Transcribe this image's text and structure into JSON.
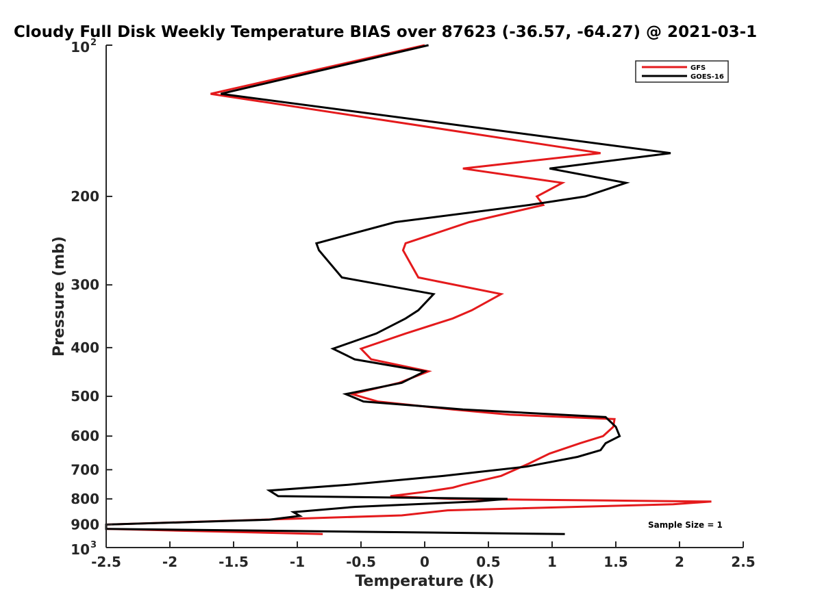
{
  "chart_data": {
    "type": "line",
    "title": "Cloudy Full Disk Weekly Temperature BIAS over 87623 (-36.57, -64.27) @ 2021-03-1",
    "xlabel": "Temperature (K)",
    "ylabel": "Pressure (mb)",
    "xlim": [
      -2.5,
      2.5
    ],
    "ylim": [
      100,
      1000
    ],
    "y_scale": "log",
    "y_reversed": true,
    "x_ticks": [
      -2.5,
      -2,
      -1.5,
      -1,
      -0.5,
      0,
      0.5,
      1,
      1.5,
      2,
      2.5
    ],
    "x_tick_labels": [
      "-2.5",
      "-2",
      "-1.5",
      "-1",
      "-0.5",
      "0",
      "0.5",
      "1",
      "1.5",
      "2",
      "2.5"
    ],
    "y_ticks": [
      200,
      300,
      400,
      500,
      600,
      700,
      800,
      900
    ],
    "y_tick_labels": [
      "200",
      "300",
      "400",
      "500",
      "600",
      "700",
      "800",
      "900"
    ],
    "y_end_ticks": [
      {
        "value": 100,
        "base": "10",
        "exponent": "2"
      },
      {
        "value": 1000,
        "base": "10",
        "exponent": "3"
      }
    ],
    "grid": false,
    "legend_position": "top-right",
    "annotation": "Sample Size = 1",
    "series": [
      {
        "name": "GFS",
        "color": "#e41a1c",
        "points": [
          [
            0.0,
            100
          ],
          [
            -1.68,
            125
          ],
          [
            1.38,
            164
          ],
          [
            0.3,
            176
          ],
          [
            1.08,
            188
          ],
          [
            0.88,
            200
          ],
          [
            0.93,
            208
          ],
          [
            0.35,
            225
          ],
          [
            -0.15,
            248
          ],
          [
            -0.17,
            256
          ],
          [
            -0.05,
            290
          ],
          [
            0.6,
            313
          ],
          [
            0.37,
            337
          ],
          [
            0.22,
            350
          ],
          [
            -0.15,
            375
          ],
          [
            -0.5,
            402
          ],
          [
            -0.42,
            422
          ],
          [
            0.03,
            446
          ],
          [
            -0.2,
            470
          ],
          [
            -0.57,
            495
          ],
          [
            -0.37,
            512
          ],
          [
            0.22,
            531
          ],
          [
            0.67,
            544
          ],
          [
            1.49,
            555
          ],
          [
            1.48,
            575
          ],
          [
            1.4,
            600
          ],
          [
            1.22,
            620
          ],
          [
            0.98,
            650
          ],
          [
            0.82,
            680
          ],
          [
            0.6,
            720
          ],
          [
            0.3,
            750
          ],
          [
            0.22,
            760
          ],
          [
            0.0,
            775
          ],
          [
            -0.27,
            790
          ],
          [
            0.2,
            800
          ],
          [
            2.25,
            810
          ],
          [
            1.95,
            820
          ],
          [
            0.18,
            843
          ],
          [
            -0.18,
            863
          ],
          [
            -2.5,
            900
          ],
          [
            -2.5,
            918
          ],
          [
            -0.8,
            940
          ]
        ]
      },
      {
        "name": "GOES-16",
        "color": "#000000",
        "points": [
          [
            0.03,
            100
          ],
          [
            -1.6,
            125
          ],
          [
            1.93,
            164
          ],
          [
            0.98,
            176
          ],
          [
            1.58,
            188
          ],
          [
            1.26,
            200
          ],
          [
            0.82,
            208
          ],
          [
            -0.23,
            225
          ],
          [
            -0.85,
            248
          ],
          [
            -0.83,
            256
          ],
          [
            -0.65,
            290
          ],
          [
            0.07,
            313
          ],
          [
            -0.05,
            337
          ],
          [
            -0.15,
            350
          ],
          [
            -0.38,
            375
          ],
          [
            -0.72,
            402
          ],
          [
            -0.55,
            422
          ],
          [
            0.0,
            446
          ],
          [
            -0.18,
            470
          ],
          [
            -0.62,
            495
          ],
          [
            -0.48,
            512
          ],
          [
            0.3,
            531
          ],
          [
            1.42,
            550
          ],
          [
            1.5,
            575
          ],
          [
            1.53,
            600
          ],
          [
            1.42,
            620
          ],
          [
            1.38,
            640
          ],
          [
            1.2,
            660
          ],
          [
            0.8,
            690
          ],
          [
            0.15,
            720
          ],
          [
            -0.6,
            750
          ],
          [
            -1.22,
            770
          ],
          [
            -1.15,
            790
          ],
          [
            0.65,
            800
          ],
          [
            0.4,
            810
          ],
          [
            -0.55,
            830
          ],
          [
            -1.03,
            850
          ],
          [
            -0.98,
            865
          ],
          [
            -1.22,
            880
          ],
          [
            -2.5,
            900
          ],
          [
            -2.5,
            918
          ],
          [
            1.1,
            940
          ]
        ]
      }
    ]
  }
}
